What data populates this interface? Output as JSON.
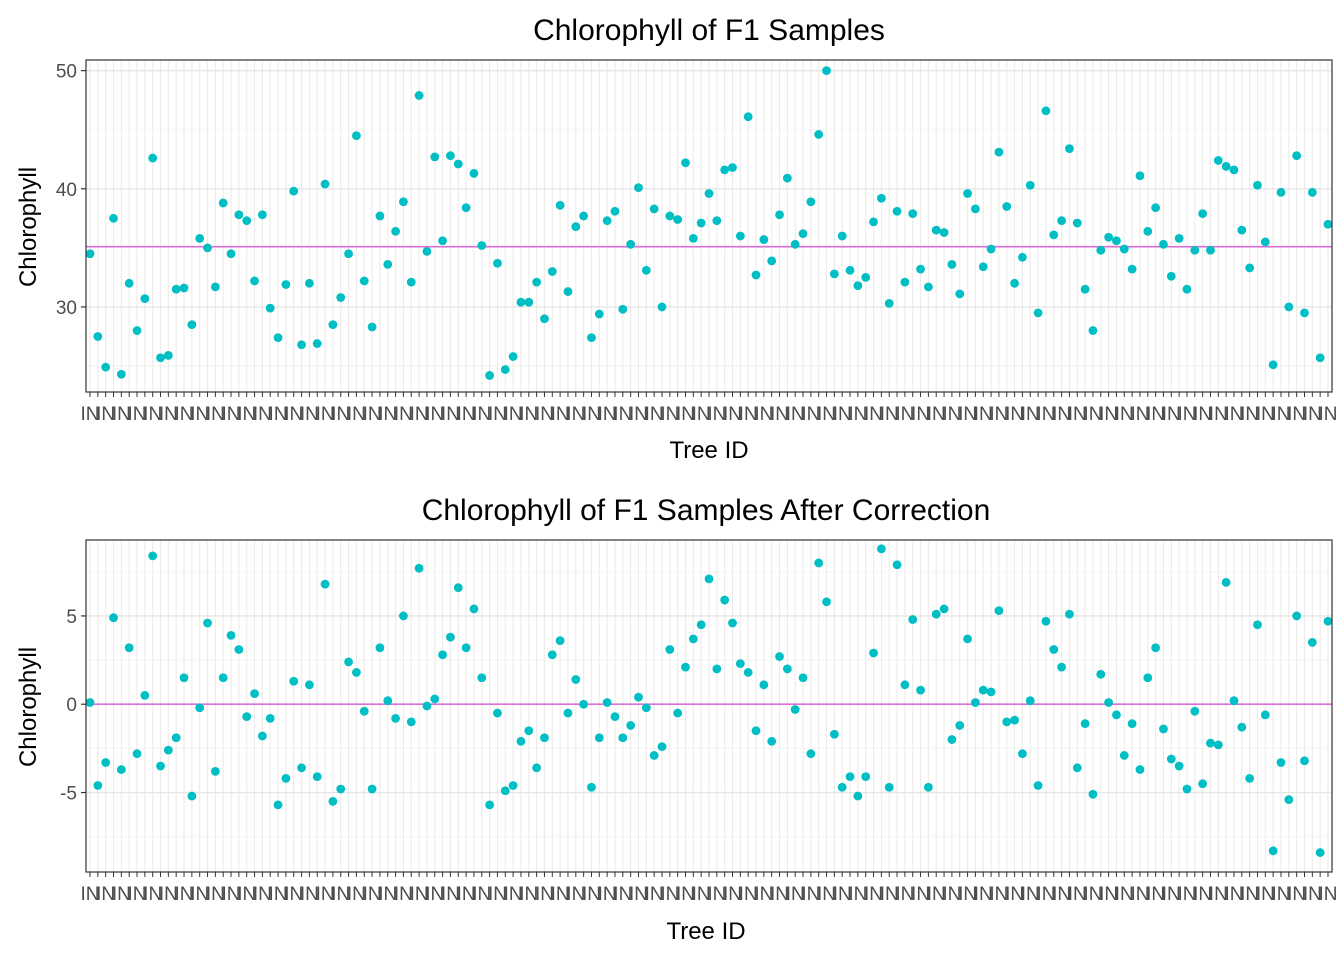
{
  "chart_data": [
    {
      "type": "scatter",
      "title": "Chlorophyll of F1 Samples",
      "xlabel": "Tree ID",
      "ylabel": "Chlorophyll",
      "ylim": [
        22.8,
        50.9
      ],
      "yticks": [
        30,
        40,
        50
      ],
      "x_tick_labels_overlapping": true,
      "x_tick_label_fragment": "IN",
      "reference_line": 35.1,
      "point_color": "#00BFC4",
      "line_color": "#DA70D6",
      "grid": true,
      "values": [
        34.5,
        27.5,
        24.9,
        37.5,
        24.3,
        32.0,
        28.0,
        30.7,
        42.6,
        25.7,
        25.9,
        31.5,
        31.6,
        28.5,
        35.8,
        35.0,
        31.7,
        38.8,
        34.5,
        37.8,
        37.3,
        32.2,
        37.8,
        29.9,
        27.4,
        31.9,
        39.8,
        26.8,
        32.0,
        26.9,
        40.4,
        28.5,
        30.8,
        34.5,
        44.5,
        32.2,
        28.3,
        37.7,
        33.6,
        36.4,
        38.9,
        32.1,
        47.9,
        34.7,
        42.7,
        35.6,
        42.8,
        42.1,
        38.4,
        41.3,
        35.2,
        24.2,
        33.7,
        24.7,
        25.8,
        30.4,
        30.4,
        32.1,
        29.0,
        33.0,
        38.6,
        31.3,
        36.8,
        37.7,
        27.4,
        29.4,
        37.3,
        38.1,
        29.8,
        35.3,
        40.1,
        33.1,
        38.3,
        30.0,
        37.7,
        37.4,
        42.2,
        35.8,
        37.1,
        39.6,
        37.3,
        41.6,
        41.8,
        36.0,
        46.1,
        32.7,
        35.7,
        33.9,
        37.8,
        40.9,
        35.3,
        36.2,
        38.9,
        44.6,
        50.0,
        32.8,
        36.0,
        33.1,
        31.8,
        32.5,
        37.2,
        39.2,
        30.3,
        38.1,
        32.1,
        37.9,
        33.2,
        31.7,
        36.5,
        36.3,
        33.6,
        31.1,
        39.6,
        38.3,
        33.4,
        34.9,
        43.1,
        38.5,
        32.0,
        34.2,
        40.3,
        29.5,
        46.6,
        36.1,
        37.3,
        43.4,
        37.1,
        31.5,
        28.0,
        34.8,
        35.9,
        35.6,
        34.9,
        33.2,
        41.1,
        36.4,
        38.4,
        35.3,
        32.6,
        35.8,
        31.5,
        34.8,
        37.9,
        34.8,
        42.4,
        41.9,
        41.6,
        36.5,
        33.3,
        40.3,
        35.5,
        25.1,
        39.7,
        30.0,
        42.8,
        29.5,
        39.7,
        25.7,
        37.0
      ]
    },
    {
      "type": "scatter",
      "title": "Chlorophyll of F1 Samples After Correction",
      "xlabel": "Tree ID",
      "ylabel": "Chlorophyll",
      "ylim": [
        -9.5,
        9.3
      ],
      "yticks": [
        -5,
        0,
        5
      ],
      "x_tick_labels_overlapping": true,
      "x_tick_label_fragment": "IN",
      "reference_line": 0,
      "point_color": "#00BFC4",
      "line_color": "#DA70D6",
      "grid": true,
      "values": [
        0.1,
        -4.6,
        -3.3,
        4.9,
        -3.7,
        3.2,
        -2.8,
        0.5,
        8.4,
        -3.5,
        -2.6,
        -1.9,
        1.5,
        -5.2,
        -0.2,
        4.6,
        -3.8,
        1.5,
        3.9,
        3.1,
        -0.7,
        0.6,
        -1.8,
        -0.8,
        -5.7,
        -4.2,
        1.3,
        -3.6,
        1.1,
        -4.1,
        6.8,
        -5.5,
        -4.8,
        2.4,
        1.8,
        -0.4,
        -4.8,
        3.2,
        0.2,
        -0.8,
        5.0,
        -1.0,
        7.7,
        -0.1,
        0.3,
        2.8,
        3.8,
        6.6,
        3.2,
        5.4,
        1.5,
        -5.7,
        -0.5,
        -4.9,
        -4.6,
        -2.1,
        -1.5,
        -3.6,
        -1.9,
        2.8,
        3.6,
        -0.5,
        1.4,
        0.0,
        -4.7,
        -1.9,
        0.1,
        -0.7,
        -1.9,
        -1.2,
        0.4,
        -0.2,
        -2.9,
        -2.4,
        3.1,
        -0.5,
        2.1,
        3.7,
        4.5,
        7.1,
        2.0,
        5.9,
        4.6,
        2.3,
        1.8,
        -1.5,
        1.1,
        -2.1,
        2.7,
        2.0,
        -0.3,
        1.5,
        -2.8,
        8.0,
        5.8,
        -1.7,
        -4.7,
        -4.1,
        -5.2,
        -4.1,
        2.9,
        8.8,
        -4.7,
        7.9,
        1.1,
        4.8,
        0.8,
        -4.7,
        5.1,
        5.4,
        -2.0,
        -1.2,
        3.7,
        0.1,
        0.8,
        0.7,
        5.3,
        -1.0,
        -0.9,
        -2.8,
        0.2,
        -4.6,
        4.7,
        3.1,
        2.1,
        5.1,
        -3.6,
        -1.1,
        -5.1,
        1.7,
        0.1,
        -0.6,
        -2.9,
        -1.1,
        -3.7,
        1.5,
        3.2,
        -1.4,
        -3.1,
        -3.5,
        -4.8,
        -0.4,
        -4.5,
        -2.2,
        -2.3,
        6.9,
        0.2,
        -1.3,
        -4.2,
        4.5,
        -0.6,
        -8.3,
        -3.3,
        -5.4,
        5.0,
        -3.2,
        3.5,
        -8.4,
        4.7
      ]
    }
  ]
}
